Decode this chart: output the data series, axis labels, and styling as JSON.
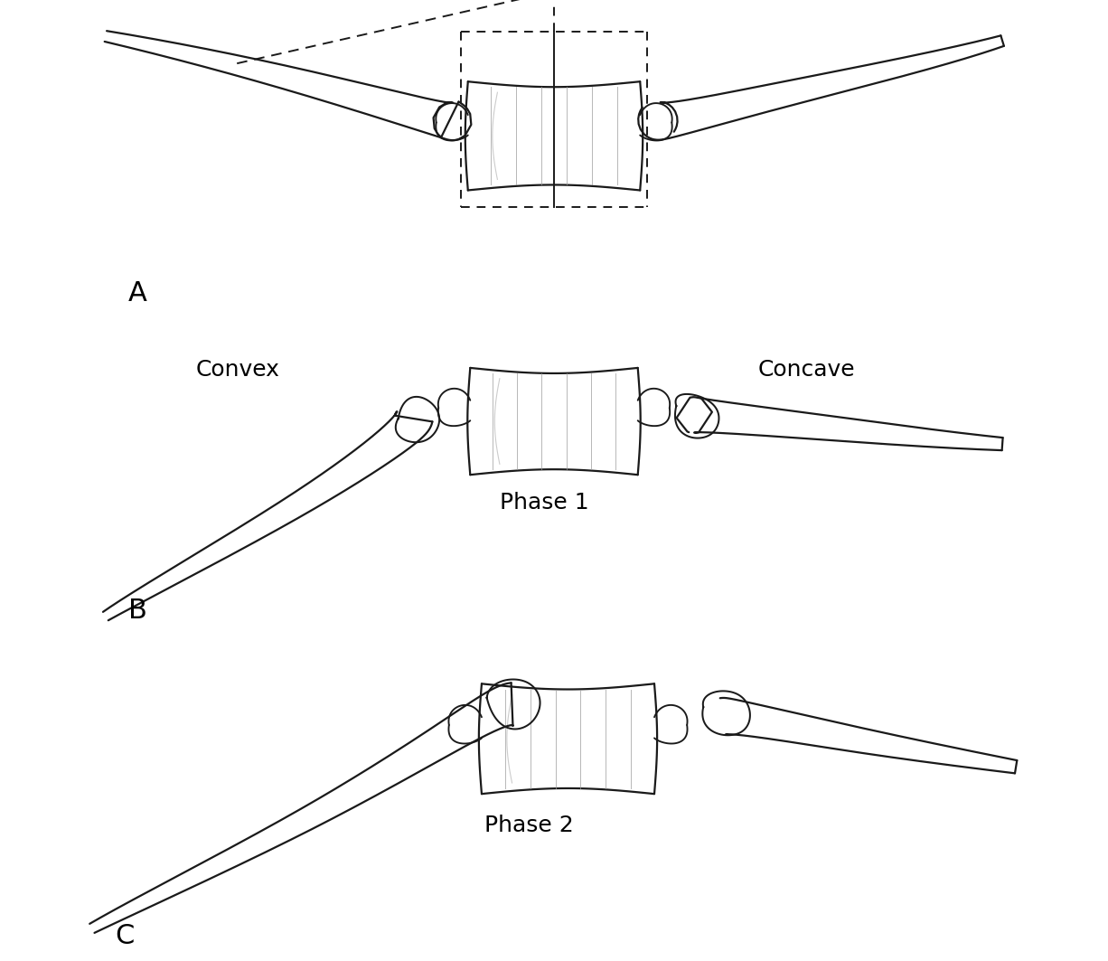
{
  "bg_color": "#ffffff",
  "text_color": "#000000",
  "line_color": "#1a1a1a",
  "label_A": "A",
  "label_B": "B",
  "label_C": "C",
  "label_convex": "Convex",
  "label_concave": "Concave",
  "label_phase1": "Phase 1",
  "label_phase2": "Phase 2",
  "font_size_label": 18,
  "font_size_abc": 22,
  "fig_width": 12.26,
  "fig_height": 10.63,
  "dpi": 100
}
